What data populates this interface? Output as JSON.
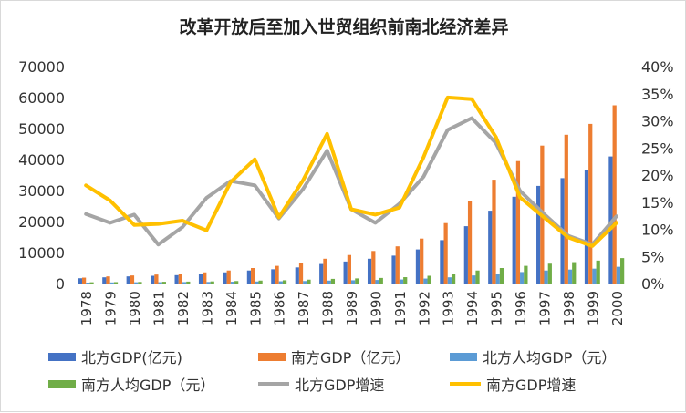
{
  "chart_data": {
    "type": "bar",
    "title": "改革开放后至加入世贸组织前南北经济差异",
    "categories": [
      "1978",
      "1979",
      "1980",
      "1981",
      "1982",
      "1983",
      "1984",
      "1985",
      "1986",
      "1987",
      "1988",
      "1989",
      "1990",
      "1991",
      "1992",
      "1993",
      "1994",
      "1995",
      "1996",
      "1997",
      "1998",
      "1999",
      "2000"
    ],
    "y_left": {
      "min": 0,
      "max": 70000,
      "step": 10000,
      "ticks": [
        "0",
        "10000",
        "20000",
        "30000",
        "40000",
        "50000",
        "60000",
        "70000"
      ]
    },
    "y_right": {
      "min": 0,
      "max": 0.4,
      "step": 0.05,
      "ticks": [
        "0%",
        "5%",
        "10%",
        "15%",
        "20%",
        "25%",
        "30%",
        "35%",
        "40%"
      ]
    },
    "grid": false,
    "legend_position": "bottom",
    "bar_series": [
      {
        "name": "北方GDP(亿元)",
        "color": "#4472C4",
        "axis": "left",
        "values": [
          1700,
          2000,
          2300,
          2500,
          2700,
          3000,
          3600,
          4200,
          4600,
          5200,
          6300,
          7100,
          8000,
          9000,
          11000,
          14000,
          18500,
          23500,
          28000,
          31500,
          34000,
          36500,
          41000
        ]
      },
      {
        "name": "南方GDP（亿元）",
        "color": "#ED7D31",
        "axis": "left",
        "values": [
          1900,
          2300,
          2600,
          2900,
          3200,
          3600,
          4200,
          5000,
          5700,
          6600,
          8000,
          9200,
          10500,
          12000,
          14500,
          19500,
          26500,
          33500,
          39500,
          44500,
          48000,
          51500,
          57500
        ]
      },
      {
        "name": "北方人均GDP（元）",
        "color": "#5B9BD5",
        "axis": "left",
        "values": [
          300,
          350,
          400,
          420,
          460,
          500,
          570,
          650,
          720,
          800,
          950,
          1050,
          1150,
          1300,
          1600,
          2000,
          2600,
          3200,
          3700,
          4200,
          4500,
          4800,
          5400
        ]
      },
      {
        "name": "南方人均GDP（元）",
        "color": "#70AD47",
        "axis": "left",
        "values": [
          400,
          450,
          500,
          560,
          620,
          680,
          800,
          950,
          1050,
          1250,
          1500,
          1650,
          1800,
          2050,
          2500,
          3200,
          4200,
          5000,
          5700,
          6400,
          6900,
          7400,
          8200
        ]
      }
    ],
    "line_series": [
      {
        "name": "北方GDP增速",
        "color": "#A5A5A5",
        "axis": "right",
        "values": [
          0.128,
          0.112,
          0.127,
          0.072,
          0.104,
          0.158,
          0.189,
          0.181,
          0.12,
          0.174,
          0.245,
          0.137,
          0.112,
          0.147,
          0.197,
          0.283,
          0.305,
          0.259,
          0.171,
          0.128,
          0.088,
          0.072,
          0.124
        ]
      },
      {
        "name": "南方GDP增速",
        "color": "#FFC000",
        "axis": "right",
        "values": [
          0.181,
          0.153,
          0.108,
          0.11,
          0.116,
          0.098,
          0.187,
          0.229,
          0.122,
          0.19,
          0.276,
          0.137,
          0.127,
          0.14,
          0.233,
          0.343,
          0.34,
          0.27,
          0.159,
          0.122,
          0.085,
          0.069,
          0.112
        ]
      }
    ]
  }
}
